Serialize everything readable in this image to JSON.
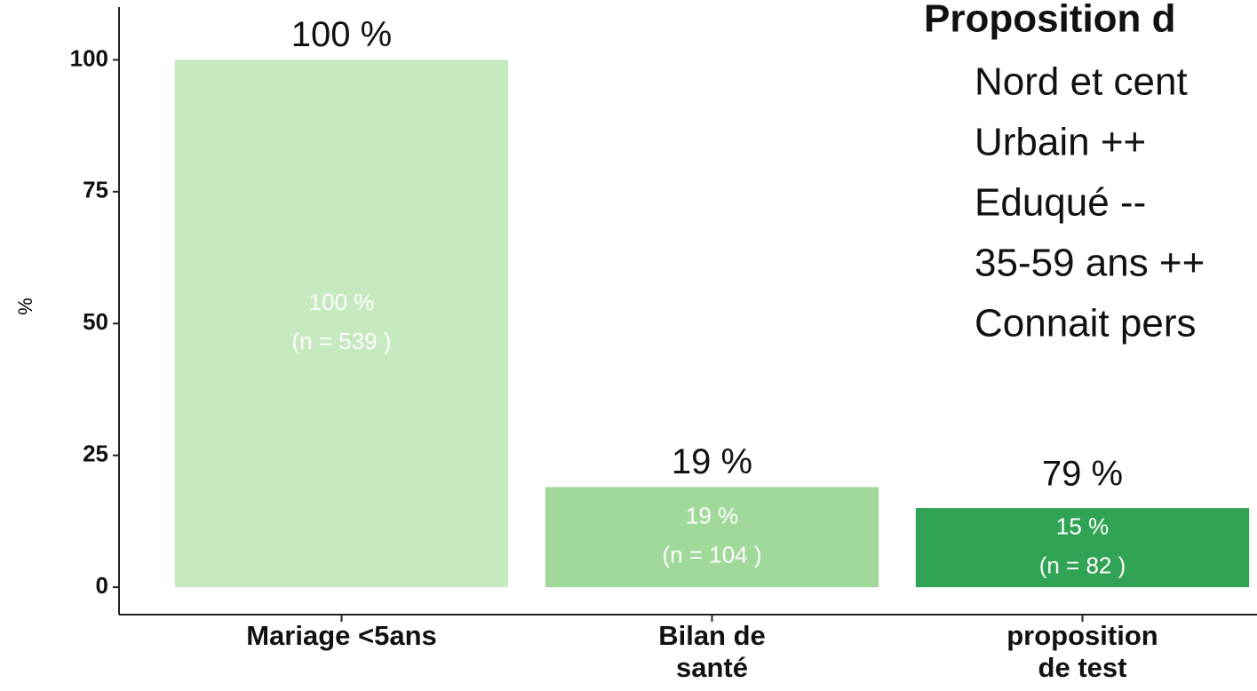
{
  "chart_data": {
    "type": "bar",
    "y_label": "%",
    "categories": [
      "Mariage <5ans",
      "Bilan de\nsanté",
      "proposition\nde test"
    ],
    "values": [
      100,
      19,
      15
    ],
    "value_labels": [
      "100 %",
      "19 %",
      "15 %"
    ],
    "n_labels": [
      "(n = 539 )",
      "(n = 104 )",
      "(n = 82 )"
    ],
    "top_labels": [
      "100 %",
      "19 %",
      "79 %"
    ],
    "colors": [
      "#c7e9c0",
      "#a1d99b",
      "#31a354"
    ],
    "ylim": [
      -5.2,
      110
    ],
    "yticks": [
      0,
      25,
      50,
      75,
      100
    ],
    "grid": false,
    "annotation": {
      "title": "Proposition d",
      "lines": [
        "Nord et cent",
        "Urbain ++",
        "Eduqué --",
        "35-59 ans ++",
        "Connait pers"
      ]
    }
  }
}
